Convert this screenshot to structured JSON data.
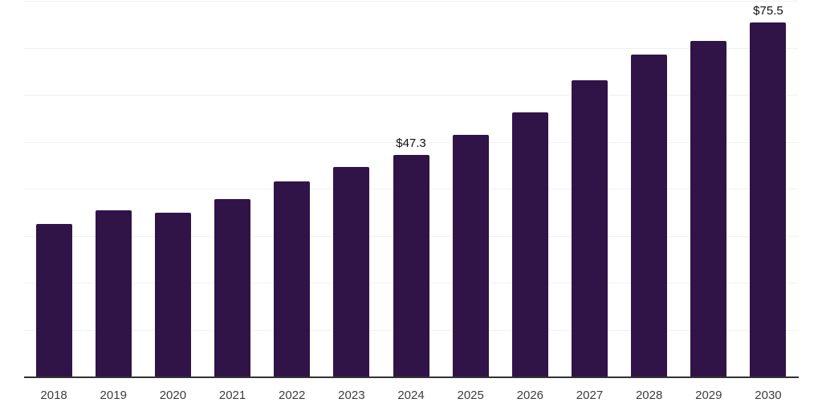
{
  "chart_data": {
    "type": "bar",
    "title": "",
    "xlabel": "",
    "ylabel": "",
    "categories": [
      "2018",
      "2019",
      "2020",
      "2021",
      "2022",
      "2023",
      "2024",
      "2025",
      "2026",
      "2027",
      "2028",
      "2029",
      "2030"
    ],
    "values": [
      32.7,
      35.6,
      35.1,
      37.9,
      41.7,
      44.8,
      47.3,
      51.6,
      56.4,
      63.3,
      68.8,
      71.7,
      75.5
    ],
    "value_prefix": "$",
    "data_labels": {
      "2024": "$47.3",
      "2030": "$75.5"
    },
    "ylim": [
      0,
      80
    ],
    "grid": {
      "orientation": "horizontal",
      "step": 10,
      "visible": true
    },
    "legend": "none",
    "colors": {
      "bar": "#301347",
      "grid": "#f0f0f0",
      "axis_line": "#333333",
      "tick_label": "#3d3d3d",
      "data_label": "#111111",
      "background": "#ffffff"
    }
  }
}
